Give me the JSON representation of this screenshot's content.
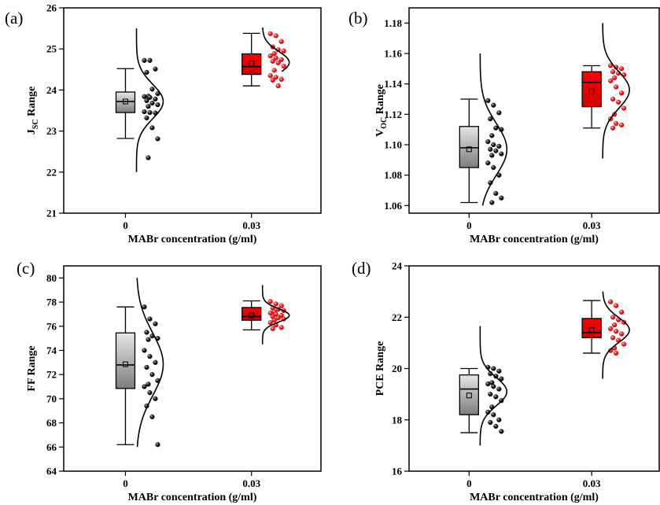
{
  "chart_data": [
    {
      "type": "box",
      "panel_label": "(a)",
      "xlabel": "MABr concentration (g/ml)",
      "ylabel_main": "J",
      "ylabel_sub": "SC",
      "ylabel_tail": " Range",
      "ylim": [
        21,
        26
      ],
      "yticks": [
        21,
        22,
        23,
        24,
        25,
        26
      ],
      "categories": [
        "0",
        "0.03"
      ],
      "colors": [
        "#aaaaaa",
        "#ff0000"
      ],
      "boxes": [
        {
          "min": 22.82,
          "q1": 23.45,
          "median": 23.72,
          "mean": 23.72,
          "q3": 23.95,
          "max": 24.52
        },
        {
          "min": 24.1,
          "q1": 24.38,
          "median": 24.57,
          "mean": 24.65,
          "q3": 24.88,
          "max": 25.38
        }
      ],
      "points": [
        [
          24.72,
          24.72,
          24.51,
          24.43,
          24.02,
          23.91,
          23.85,
          23.84,
          23.82,
          23.78,
          23.74,
          23.68,
          23.64,
          23.6,
          23.47,
          23.45,
          23.44,
          23.32,
          23.08,
          22.81,
          22.35
        ],
        [
          25.37,
          25.32,
          25.18,
          25.05,
          24.98,
          24.95,
          24.89,
          24.83,
          24.78,
          24.74,
          24.7,
          24.66,
          24.58,
          24.48,
          24.35,
          24.31,
          24.26,
          24.24,
          24.1
        ]
      ],
      "dist": [
        {
          "mean": 23.72,
          "sd": 0.42,
          "lo": 22.0,
          "hi": 25.5
        },
        {
          "mean": 24.67,
          "sd": 0.27,
          "lo": 24.45,
          "hi": 25.52
        }
      ]
    },
    {
      "type": "box",
      "panel_label": "(b)",
      "xlabel": "MABr concentration (g/ml)",
      "ylabel_main": "V",
      "ylabel_sub": "OC",
      "ylabel_tail": " Range",
      "ylim": [
        1.055,
        1.19
      ],
      "yticks": [
        "1.06",
        "1.08",
        "1.10",
        "1.12",
        "1.14",
        "1.16",
        "1.18"
      ],
      "categories": [
        "0",
        "0.03"
      ],
      "colors": [
        "#aaaaaa",
        "#ff0000"
      ],
      "boxes": [
        {
          "min": 1.062,
          "q1": 1.085,
          "median": 1.098,
          "mean": 1.097,
          "q3": 1.112,
          "max": 1.13
        },
        {
          "min": 1.111,
          "q1": 1.125,
          "median": 1.141,
          "mean": 1.135,
          "q3": 1.148,
          "max": 1.152
        }
      ],
      "points": [
        [
          1.129,
          1.126,
          1.121,
          1.117,
          1.111,
          1.11,
          1.106,
          1.102,
          1.1,
          1.099,
          1.097,
          1.096,
          1.094,
          1.093,
          1.088,
          1.085,
          1.08,
          1.075,
          1.068,
          1.065,
          1.062
        ],
        [
          1.152,
          1.151,
          1.15,
          1.148,
          1.147,
          1.146,
          1.144,
          1.142,
          1.138,
          1.134,
          1.13,
          1.128,
          1.124,
          1.12,
          1.117,
          1.114,
          1.113,
          1.111
        ]
      ],
      "dist": [
        {
          "mean": 1.097,
          "sd": 0.017,
          "lo": 1.06,
          "hi": 1.16
        },
        {
          "mean": 1.136,
          "sd": 0.012,
          "lo": 1.091,
          "hi": 1.18
        }
      ]
    },
    {
      "type": "box",
      "panel_label": "(c)",
      "xlabel": "MABr concentration (g/ml)",
      "ylabel_main": "FF",
      "ylabel_sub": "",
      "ylabel_tail": " Range",
      "ylim": [
        64,
        81
      ],
      "yticks": [
        64,
        66,
        68,
        70,
        72,
        74,
        76,
        78,
        80
      ],
      "categories": [
        "0",
        "0.03"
      ],
      "colors": [
        "#aaaaaa",
        "#ff0000"
      ],
      "boxes": [
        {
          "min": 66.2,
          "q1": 70.85,
          "median": 72.8,
          "mean": 72.85,
          "q3": 75.45,
          "max": 77.6
        },
        {
          "min": 75.7,
          "q1": 76.5,
          "median": 76.8,
          "mean": 76.9,
          "q3": 77.55,
          "max": 78.1
        }
      ],
      "points": [
        [
          77.6,
          76.6,
          76.2,
          75.5,
          75.2,
          75.0,
          74.9,
          74.0,
          73.5,
          73.0,
          72.6,
          72.0,
          71.5,
          71.2,
          71.0,
          70.5,
          70.0,
          69.4,
          68.5,
          66.2
        ],
        [
          78.05,
          77.85,
          77.7,
          77.5,
          77.4,
          77.3,
          77.2,
          77.1,
          77.0,
          76.9,
          76.8,
          76.7,
          76.6,
          76.5,
          76.3,
          76.1,
          75.9,
          75.8
        ]
      ],
      "dist": [
        {
          "mean": 72.85,
          "sd": 2.6,
          "lo": 66.0,
          "hi": 80.0
        },
        {
          "mean": 76.9,
          "sd": 0.55,
          "lo": 74.5,
          "hi": 79.4
        }
      ]
    },
    {
      "type": "box",
      "panel_label": "(d)",
      "xlabel": "MABr concentration (g/ml)",
      "ylabel_main": "PCE",
      "ylabel_sub": "",
      "ylabel_tail": " Range",
      "ylim": [
        16,
        24
      ],
      "yticks": [
        16,
        18,
        20,
        22,
        24
      ],
      "categories": [
        "0",
        "0.03"
      ],
      "colors": [
        "#aaaaaa",
        "#ff0000"
      ],
      "boxes": [
        {
          "min": 17.5,
          "q1": 18.2,
          "median": 19.2,
          "mean": 18.95,
          "q3": 19.75,
          "max": 20.0
        },
        {
          "min": 20.6,
          "q1": 21.2,
          "median": 21.4,
          "mean": 21.5,
          "q3": 21.95,
          "max": 22.65
        }
      ],
      "points": [
        [
          20.05,
          20.0,
          19.9,
          19.8,
          19.7,
          19.6,
          19.45,
          19.4,
          19.3,
          19.2,
          19.0,
          18.9,
          18.75,
          18.5,
          18.3,
          18.2,
          18.0,
          17.9,
          17.75,
          17.55
        ],
        [
          22.6,
          22.45,
          22.2,
          22.0,
          21.9,
          21.8,
          21.7,
          21.55,
          21.45,
          21.35,
          21.2,
          21.1,
          20.95,
          20.8,
          20.7,
          20.6
        ]
      ],
      "dist": [
        {
          "mean": 19.1,
          "sd": 0.55,
          "lo": 17.0,
          "hi": 21.65
        },
        {
          "mean": 21.5,
          "sd": 0.48,
          "lo": 19.6,
          "hi": 23.0
        }
      ]
    }
  ]
}
